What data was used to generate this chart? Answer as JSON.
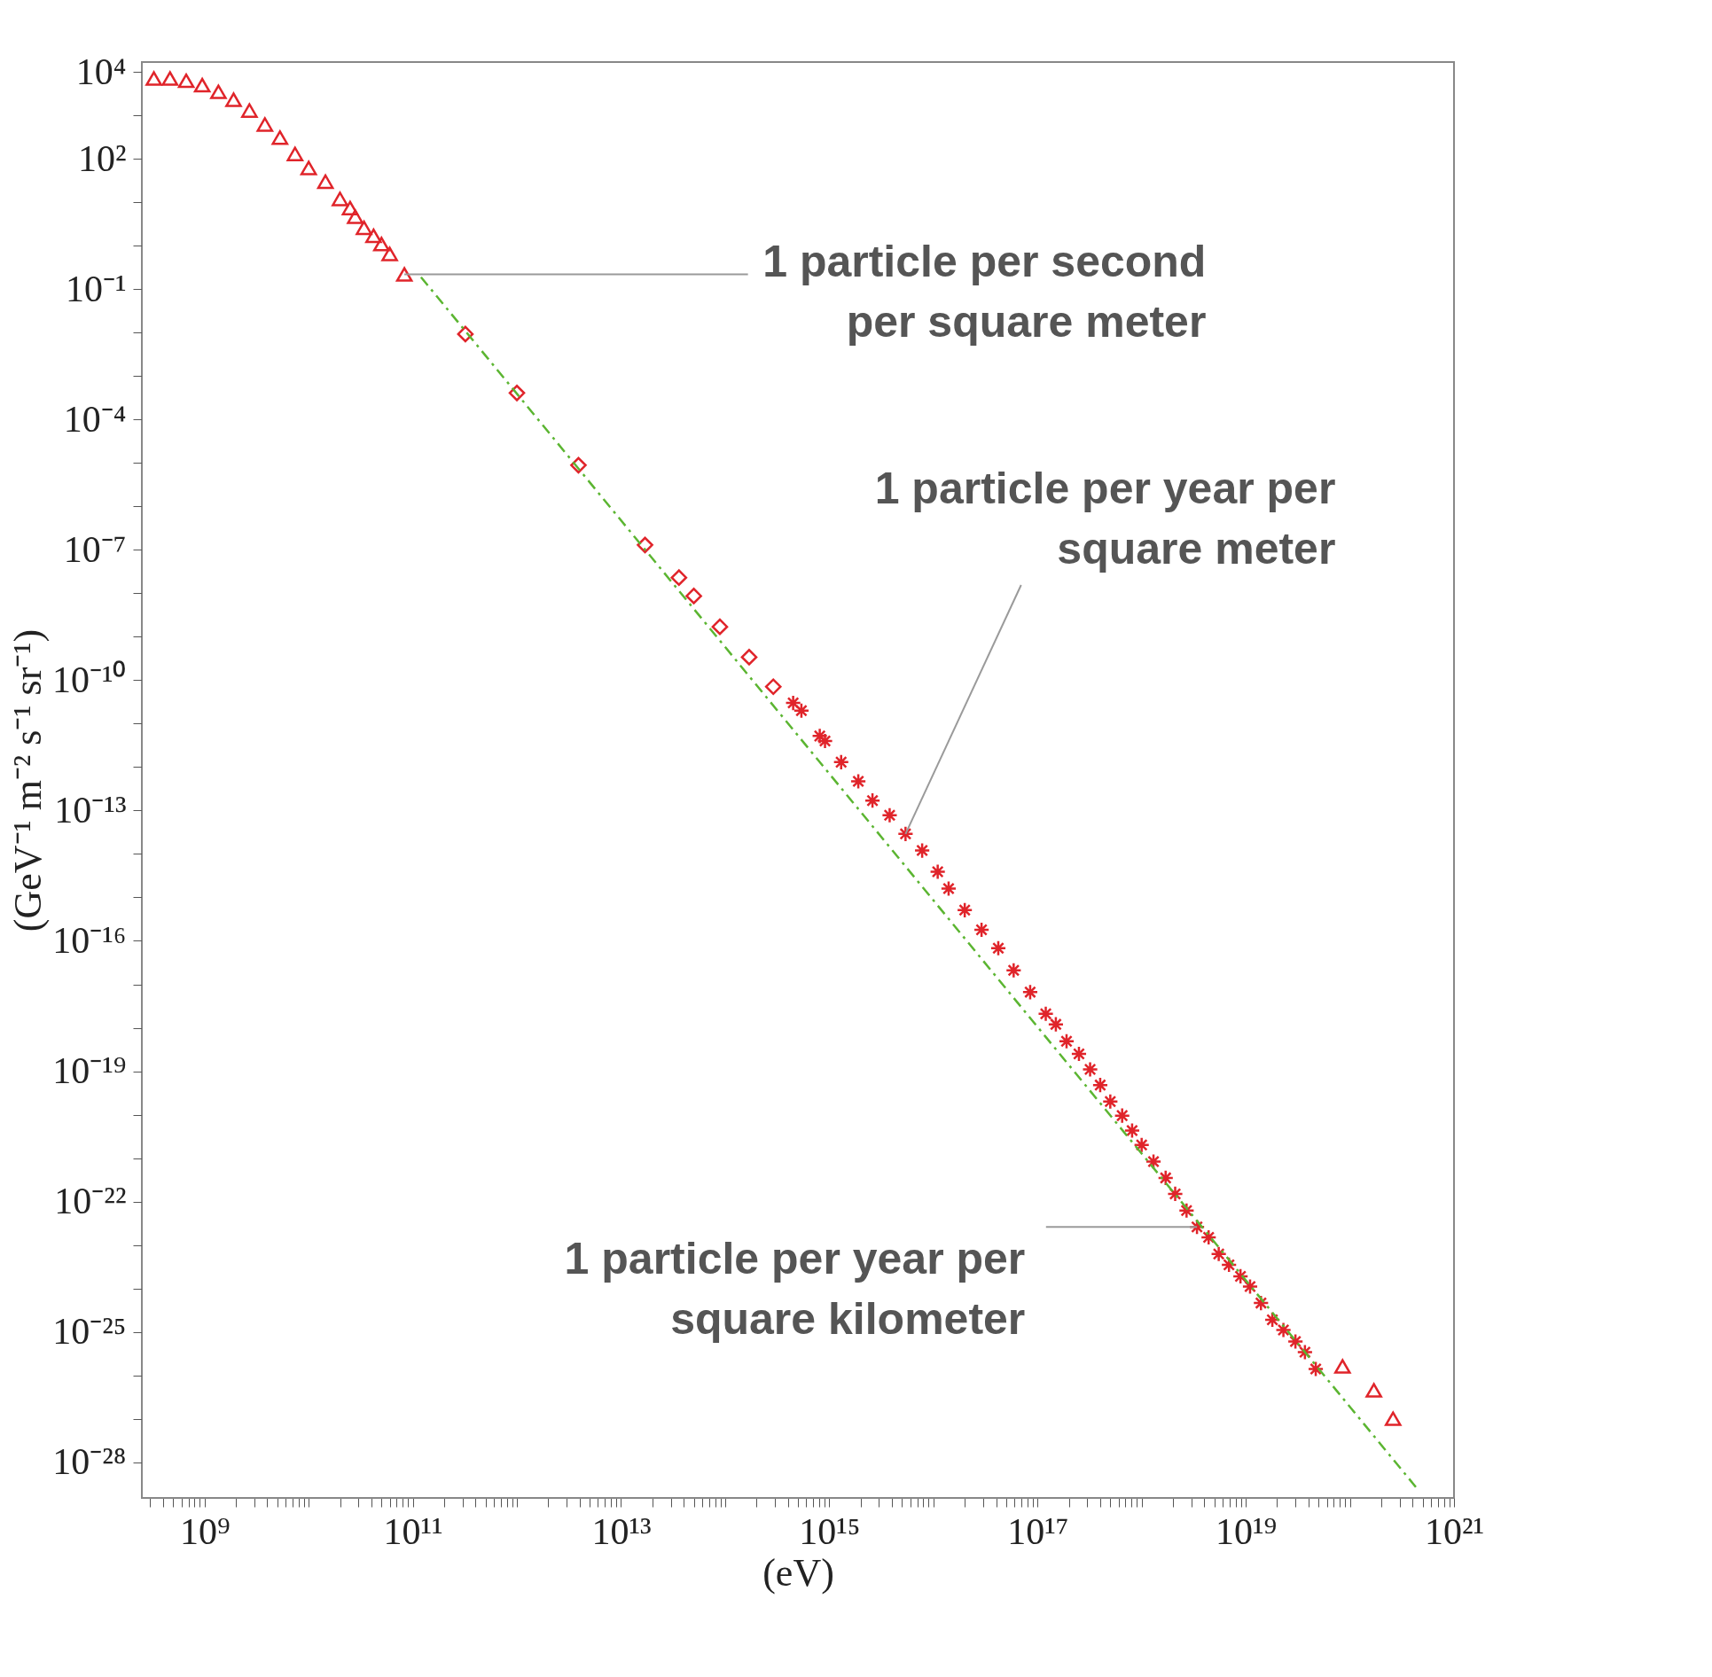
{
  "chart_data": {
    "type": "scatter",
    "xlabel": "(eV)",
    "ylabel": "(GeV⁻¹ m⁻² s⁻¹ sr⁻¹)",
    "log": "xy",
    "grid": false,
    "xlim": [
      250000000.0,
      1e+21
    ],
    "ylim": [
      1.5e-29,
      17000.0
    ],
    "xticks": [
      {
        "value": 300000000.0,
        "label": null
      },
      {
        "value": 400000000.0,
        "label": null
      },
      {
        "value": 500000000.0,
        "label": null
      },
      {
        "value": 600000000.0,
        "label": null
      },
      {
        "value": 700000000.0,
        "label": null
      },
      {
        "value": 800000000.0,
        "label": null
      },
      {
        "value": 900000000.0,
        "label": null
      },
      {
        "value": 1000000000.0,
        "label": "10⁹"
      },
      {
        "value": 2000000000.0,
        "label": null
      },
      {
        "value": 3000000000.0,
        "label": null
      },
      {
        "value": 4000000000.0,
        "label": null
      },
      {
        "value": 5000000000.0,
        "label": null
      },
      {
        "value": 6000000000.0,
        "label": null
      },
      {
        "value": 7000000000.0,
        "label": null
      },
      {
        "value": 8000000000.0,
        "label": null
      },
      {
        "value": 9000000000.0,
        "label": null
      },
      {
        "value": 10000000000.0,
        "label": null
      },
      {
        "value": 20000000000.0,
        "label": null
      },
      {
        "value": 30000000000.0,
        "label": null
      },
      {
        "value": 40000000000.0,
        "label": null
      },
      {
        "value": 50000000000.0,
        "label": null
      },
      {
        "value": 60000000000.0,
        "label": null
      },
      {
        "value": 70000000000.0,
        "label": null
      },
      {
        "value": 80000000000.0,
        "label": null
      },
      {
        "value": 90000000000.0,
        "label": null
      },
      {
        "value": 100000000000.0,
        "label": "10¹¹"
      },
      {
        "value": 200000000000.0,
        "label": null
      },
      {
        "value": 300000000000.0,
        "label": null
      },
      {
        "value": 400000000000.0,
        "label": null
      },
      {
        "value": 500000000000.0,
        "label": null
      },
      {
        "value": 600000000000.0,
        "label": null
      },
      {
        "value": 700000000000.0,
        "label": null
      },
      {
        "value": 800000000000.0,
        "label": null
      },
      {
        "value": 900000000000.0,
        "label": null
      },
      {
        "value": 1000000000000.0,
        "label": null
      },
      {
        "value": 2000000000000.0,
        "label": null
      },
      {
        "value": 3000000000000.0,
        "label": null
      },
      {
        "value": 4000000000000.0,
        "label": null
      },
      {
        "value": 5000000000000.0,
        "label": null
      },
      {
        "value": 6000000000000.0,
        "label": null
      },
      {
        "value": 7000000000000.0,
        "label": null
      },
      {
        "value": 8000000000000.0,
        "label": null
      },
      {
        "value": 9000000000000.0,
        "label": null
      },
      {
        "value": 10000000000000.0,
        "label": "10¹³"
      },
      {
        "value": 20000000000000.0,
        "label": null
      },
      {
        "value": 30000000000000.0,
        "label": null
      },
      {
        "value": 40000000000000.0,
        "label": null
      },
      {
        "value": 50000000000000.0,
        "label": null
      },
      {
        "value": 60000000000000.0,
        "label": null
      },
      {
        "value": 70000000000000.0,
        "label": null
      },
      {
        "value": 80000000000000.0,
        "label": null
      },
      {
        "value": 90000000000000.0,
        "label": null
      },
      {
        "value": 100000000000000.0,
        "label": null
      },
      {
        "value": 200000000000000.0,
        "label": null
      },
      {
        "value": 300000000000000.0,
        "label": null
      },
      {
        "value": 400000000000000.0,
        "label": null
      },
      {
        "value": 500000000000000.0,
        "label": null
      },
      {
        "value": 600000000000000.0,
        "label": null
      },
      {
        "value": 700000000000000.0,
        "label": null
      },
      {
        "value": 800000000000000.0,
        "label": null
      },
      {
        "value": 900000000000000.0,
        "label": null
      },
      {
        "value": 1000000000000000.0,
        "label": "10¹⁵"
      },
      {
        "value": 2000000000000000.0,
        "label": null
      },
      {
        "value": 3000000000000000.0,
        "label": null
      },
      {
        "value": 4000000000000000.0,
        "label": null
      },
      {
        "value": 5000000000000000.0,
        "label": null
      },
      {
        "value": 6000000000000000.0,
        "label": null
      },
      {
        "value": 7000000000000000.0,
        "label": null
      },
      {
        "value": 8000000000000000.0,
        "label": null
      },
      {
        "value": 9000000000000000.0,
        "label": null
      },
      {
        "value": 1e+16,
        "label": null
      },
      {
        "value": 2e+16,
        "label": null
      },
      {
        "value": 3e+16,
        "label": null
      },
      {
        "value": 4e+16,
        "label": null
      },
      {
        "value": 5e+16,
        "label": null
      },
      {
        "value": 6e+16,
        "label": null
      },
      {
        "value": 7e+16,
        "label": null
      },
      {
        "value": 8e+16,
        "label": null
      },
      {
        "value": 9e+16,
        "label": null
      },
      {
        "value": 1e+17,
        "label": "10¹⁷"
      },
      {
        "value": 2e+17,
        "label": null
      },
      {
        "value": 3e+17,
        "label": null
      },
      {
        "value": 4e+17,
        "label": null
      },
      {
        "value": 5e+17,
        "label": null
      },
      {
        "value": 6e+17,
        "label": null
      },
      {
        "value": 7e+17,
        "label": null
      },
      {
        "value": 8e+17,
        "label": null
      },
      {
        "value": 9e+17,
        "label": null
      },
      {
        "value": 1e+18,
        "label": null
      },
      {
        "value": 2e+18,
        "label": null
      },
      {
        "value": 3e+18,
        "label": null
      },
      {
        "value": 4e+18,
        "label": null
      },
      {
        "value": 5e+18,
        "label": null
      },
      {
        "value": 6e+18,
        "label": null
      },
      {
        "value": 7e+18,
        "label": null
      },
      {
        "value": 8e+18,
        "label": null
      },
      {
        "value": 9e+18,
        "label": null
      },
      {
        "value": 1e+19,
        "label": "10¹⁹"
      },
      {
        "value": 2e+19,
        "label": null
      },
      {
        "value": 3e+19,
        "label": null
      },
      {
        "value": 4e+19,
        "label": null
      },
      {
        "value": 5e+19,
        "label": null
      },
      {
        "value": 6e+19,
        "label": null
      },
      {
        "value": 7e+19,
        "label": null
      },
      {
        "value": 8e+19,
        "label": null
      },
      {
        "value": 9e+19,
        "label": null
      },
      {
        "value": 1e+20,
        "label": null
      },
      {
        "value": 2e+20,
        "label": null
      },
      {
        "value": 3e+20,
        "label": null
      },
      {
        "value": 4e+20,
        "label": null
      },
      {
        "value": 5e+20,
        "label": null
      },
      {
        "value": 6e+20,
        "label": null
      },
      {
        "value": 7e+20,
        "label": null
      },
      {
        "value": 8e+20,
        "label": null
      },
      {
        "value": 9e+20,
        "label": null
      },
      {
        "value": 1e+21,
        "label": "10²¹"
      }
    ],
    "yticks": [
      {
        "value": 10000.0,
        "label": "10⁴"
      },
      {
        "value": 1000.0,
        "label": null
      },
      {
        "value": 100.0,
        "label": "10²"
      },
      {
        "value": 10.0,
        "label": null
      },
      {
        "value": 1.0,
        "label": null
      },
      {
        "value": 0.1,
        "label": "10⁻¹"
      },
      {
        "value": 0.01,
        "label": null
      },
      {
        "value": 0.001,
        "label": null
      },
      {
        "value": 0.0001,
        "label": "10⁻⁴"
      },
      {
        "value": 1e-05,
        "label": null
      },
      {
        "value": 1e-06,
        "label": null
      },
      {
        "value": 1e-07,
        "label": "10⁻⁷"
      },
      {
        "value": 1e-08,
        "label": null
      },
      {
        "value": 1e-09,
        "label": null
      },
      {
        "value": 1e-10,
        "label": "10⁻¹⁰"
      },
      {
        "value": 1e-11,
        "label": null
      },
      {
        "value": 1e-12,
        "label": null
      },
      {
        "value": 1e-13,
        "label": "10⁻¹³"
      },
      {
        "value": 1e-14,
        "label": null
      },
      {
        "value": 1e-15,
        "label": null
      },
      {
        "value": 1e-16,
        "label": "10⁻¹⁶"
      },
      {
        "value": 1e-17,
        "label": null
      },
      {
        "value": 1e-18,
        "label": null
      },
      {
        "value": 1e-19,
        "label": "10⁻¹⁹"
      },
      {
        "value": 1e-20,
        "label": null
      },
      {
        "value": 1e-21,
        "label": null
      },
      {
        "value": 1e-22,
        "label": "10⁻²²"
      },
      {
        "value": 1e-23,
        "label": null
      },
      {
        "value": 1e-24,
        "label": null
      },
      {
        "value": 1e-25,
        "label": "10⁻²⁵"
      },
      {
        "value": 1e-26,
        "label": null
      },
      {
        "value": 1e-27,
        "label": null
      },
      {
        "value": 1e-28,
        "label": "10⁻²⁸"
      }
    ],
    "series": [
      {
        "marker": "triangle",
        "color": "#e0242a",
        "x": [
          326000000.0,
          466000000.0,
          667000000.0,
          950000000.0,
          1360000000.0,
          1900000000.0,
          2700000000.0,
          3800000000.0,
          5300000000.0,
          7400000000.0,
          10000000000.0,
          14500000000.0,
          20000000000.0,
          25000000000.0,
          28000000000.0,
          34000000000.0,
          42000000000.0,
          50000000000.0,
          60000000000.0,
          83000000000.0,
          8.5e+19,
          1.7e+20,
          2.6e+20
        ],
        "values": [
          7100.0,
          7100.0,
          6300.0,
          5000.0,
          3500.0,
          2300.0,
          1300.0,
          620,
          310,
          130,
          62,
          30,
          12,
          7.4,
          4.7,
          2.6,
          1.7,
          1.1,
          0.65,
          0.22,
          1.6e-26,
          4.5e-27,
          1e-27
        ]
      },
      {
        "marker": "diamond",
        "color": "#e0242a",
        "x": [
          320000000000.0,
          1000000000000.0,
          3900000000000.0,
          17000000000000.0,
          36000000000000.0,
          50000000000000.0,
          89000000000000.0,
          170000000000000.0,
          290000000000000.0
        ],
        "values": [
          0.0093,
          0.00041,
          8.9e-06,
          1.3e-07,
          2.3e-08,
          8.7e-09,
          1.7e-09,
          3.4e-10,
          7.1e-11
        ]
      },
      {
        "marker": "cross",
        "color": "#e0242a",
        "x": [
          450000000000000.0,
          540000000000000.0,
          810000000000000.0,
          910000000000000.0,
          1300000000000000.0,
          1900000000000000.0,
          2600000000000000.0,
          3800000000000000.0,
          5400000000000000.0,
          7800000000000000.0,
          1.1e+16,
          1.4e+16,
          2e+16,
          2.9e+16,
          4.2e+16,
          5.9e+16,
          8.5e+16,
          1.2e+17,
          1.5e+17,
          1.9e+17,
          2.5e+17,
          3.2e+17,
          4e+17,
          5e+17,
          6.5e+17,
          8.1e+17,
          1e+18,
          1.3e+18,
          1.7e+18,
          2.1e+18,
          2.7e+18,
          3.4e+18,
          4.4e+18,
          5.5e+18,
          6.9e+18,
          8.9e+18,
          1.1e+19,
          1.4e+19,
          1.8e+19,
          2.3e+19,
          3e+19,
          3.7e+19,
          4.7e+19
        ],
        "values": [
          3e-11,
          2e-11,
          5.2e-12,
          4e-12,
          1.3e-12,
          4.7e-13,
          1.7e-13,
          7.8e-14,
          2.9e-14,
          1.2e-14,
          3.9e-15,
          1.6e-15,
          5.1e-16,
          1.8e-16,
          6.8e-17,
          2.1e-17,
          6.6e-18,
          2.1e-18,
          1.2e-18,
          4.9e-19,
          2.5e-19,
          1.1e-19,
          4.8e-20,
          2e-20,
          9.5e-21,
          4.3e-21,
          2e-21,
          8.3e-22,
          3.5e-22,
          1.5e-22,
          6.2e-23,
          2.6e-23,
          1.5e-23,
          6.2e-24,
          3.5e-24,
          1.9e-24,
          1.1e-24,
          4.6e-25,
          1.9e-25,
          1.1e-25,
          6e-26,
          3.4e-26,
          1.4e-26
        ]
      },
      {
        "type": "line",
        "line_style": "dashed",
        "color": "#5bb531",
        "x": [
          120000000000.0,
          4.6e+20
        ],
        "values": [
          0.19,
          2.2e-29
        ]
      }
    ],
    "annotations": [
      {
        "text": "1 particle per second per square meter",
        "x": 83000000000.0,
        "y": 0.22
      },
      {
        "text": "1 particle per year per square meter",
        "x": 5400000000000000.0,
        "y": 2.9e-14
      },
      {
        "text": "1 particle per year per square kilometer",
        "x": 3.4e+18,
        "y": 2.6e-23
      }
    ]
  }
}
